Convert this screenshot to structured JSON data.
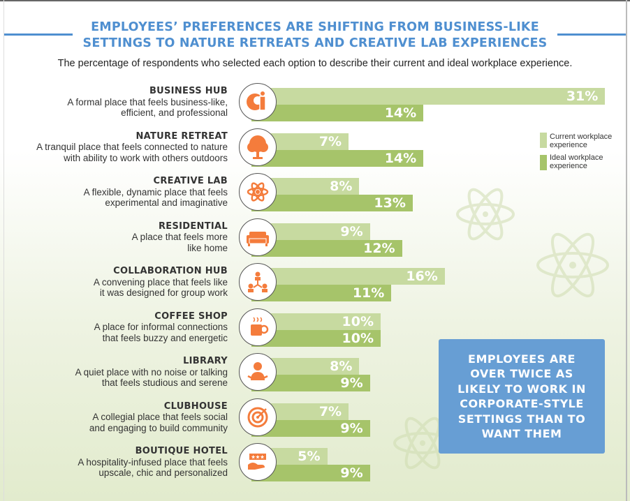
{
  "title_line1": "EMPLOYEES’ PREFERENCES ARE SHIFTING FROM BUSINESS-LIKE",
  "title_line2": "SETTINGS TO NATURE RETREATS AND CREATIVE LAB EXPERIENCES",
  "subtitle": "The percentage of respondents who selected each option to describe their current and ideal workplace experience.",
  "callout": "EMPLOYEES ARE OVER TWICE AS LIKELY TO WORK IN CORPORATE-STYLE SETTINGS THAN TO WANT THEM",
  "colors": {
    "current": "#c7daa0",
    "ideal": "#a6c46a",
    "icon": "#f47c3c",
    "accent": "#4f8fd0",
    "callout": "#679ed4"
  },
  "chart_data": {
    "type": "bar",
    "orientation": "horizontal",
    "legend_position": "right",
    "categories": [
      "BUSINESS HUB",
      "NATURE RETREAT",
      "CREATIVE LAB",
      "RESIDENTIAL",
      "COLLABORATION HUB",
      "COFFEE SHOP",
      "LIBRARY",
      "CLUBHOUSE",
      "BOUTIQUE HOTEL"
    ],
    "descriptions": [
      [
        "A formal place that feels business-like,",
        "efficient, and professional"
      ],
      [
        "A tranquil place that feels connected to nature",
        "with ability to work with others outdoors"
      ],
      [
        "A flexible, dynamic place that feels",
        "experimental and imaginative"
      ],
      [
        "A place that feels more",
        "like home"
      ],
      [
        "A convening place that feels like",
        "it was designed for group work"
      ],
      [
        "A place for informal connections",
        "that feels buzzy and energetic"
      ],
      [
        "A quiet place with no noise or talking",
        "that feels studious and serene"
      ],
      [
        "A collegial place that feels social",
        "and engaging to build community"
      ],
      [
        "A hospitality-infused place that feels",
        "upscale, chic and personalized"
      ]
    ],
    "icons": [
      "business-person-icon",
      "tree-icon",
      "atom-icon",
      "sofa-icon",
      "group-network-icon",
      "coffee-cup-icon",
      "reader-icon",
      "target-icon",
      "hotel-stars-icon"
    ],
    "series": [
      {
        "name": "Current workplace experience",
        "values": [
          31,
          7,
          8,
          9,
          16,
          10,
          8,
          7,
          5
        ],
        "labels": [
          "31%",
          "7%",
          "8%",
          "9%",
          "16%",
          "10%",
          "8%",
          "7%",
          "5%"
        ]
      },
      {
        "name": "Ideal workplace experience",
        "values": [
          14,
          14,
          13,
          12,
          11,
          10,
          9,
          9,
          9
        ],
        "labels": [
          "14%",
          "14%",
          "13%",
          "12%",
          "11%",
          "10%",
          "9%",
          "9%",
          "9%"
        ]
      }
    ],
    "legend": [
      "Current workplace",
      "experience",
      "Ideal workplace",
      "experience"
    ]
  }
}
